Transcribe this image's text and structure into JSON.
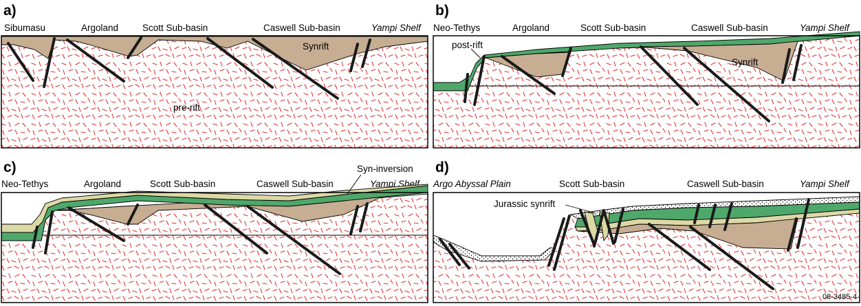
{
  "colors": {
    "basement_dash": "#e03030",
    "synrift": "#c7ae93",
    "postrift": "#4fa86b",
    "syninversion": "#dcd9a6",
    "fault": "#1a1a1a"
  },
  "panels": [
    {
      "label": "a)",
      "locations": [
        "Sibumasu",
        "Argoland",
        "Scott Sub-basin",
        "Caswell Sub-basin"
      ],
      "shelf": "Yampi Shelf",
      "units": {
        "synrift": "Synrift",
        "prerift": "pre-rift"
      }
    },
    {
      "label": "b)",
      "locations": [
        "Neo-Tethys",
        "Argoland",
        "Scott Sub-basin",
        "Caswell Sub-basin"
      ],
      "shelf": "Yampi Shelf",
      "units": {
        "postrift": "post-rift",
        "synrift": "Synrift"
      }
    },
    {
      "label": "c)",
      "locations": [
        "Neo-Tethys",
        "Argoland",
        "Scott Sub-basin",
        "Caswell Sub-basin"
      ],
      "shelf": "Yampi Shelf",
      "units": {
        "syninversion": "Syn-inversion"
      }
    },
    {
      "label": "d)",
      "plain": "Argo Abyssal Plain",
      "locations": [
        "Scott Sub-basin",
        "Caswell Sub-basin"
      ],
      "shelf": "Yampi Shelf",
      "units": {
        "jurassic": "Jurassic synrift"
      }
    }
  ],
  "figure_code": "08-3485-4"
}
